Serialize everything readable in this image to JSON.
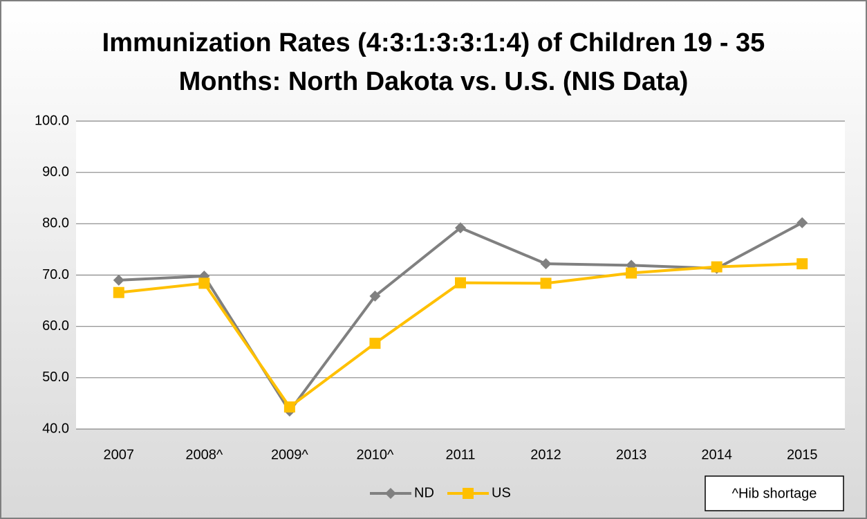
{
  "chart_data": {
    "type": "line",
    "title": "Immunization Rates (4:3:1:3:3:1:4) of Children 19 - 35 Months: North Dakota vs. U.S. (NIS Data)",
    "categories": [
      "2007",
      "2008^",
      "2009^",
      "2010^",
      "2011",
      "2012",
      "2013",
      "2014",
      "2015"
    ],
    "series": [
      {
        "name": "ND",
        "color": "#808080",
        "marker": "diamond",
        "values": [
          69.0,
          69.8,
          43.5,
          65.9,
          79.2,
          72.2,
          71.9,
          71.3,
          80.2
        ]
      },
      {
        "name": "US",
        "color": "#FFC000",
        "marker": "square",
        "values": [
          66.6,
          68.4,
          44.3,
          56.7,
          68.5,
          68.4,
          70.4,
          71.6,
          72.2
        ]
      }
    ],
    "ylim": [
      40,
      100
    ],
    "yticks": [
      {
        "value": 40,
        "label": "40.0"
      },
      {
        "value": 50,
        "label": "50.0"
      },
      {
        "value": 60,
        "label": "60.0"
      },
      {
        "value": 70,
        "label": "70.0"
      },
      {
        "value": 80,
        "label": "80.0"
      },
      {
        "value": 90,
        "label": "90.0"
      },
      {
        "value": 100,
        "label": "100.0"
      }
    ],
    "grid": true,
    "legend": "bottom",
    "annotation": "^Hib shortage"
  }
}
